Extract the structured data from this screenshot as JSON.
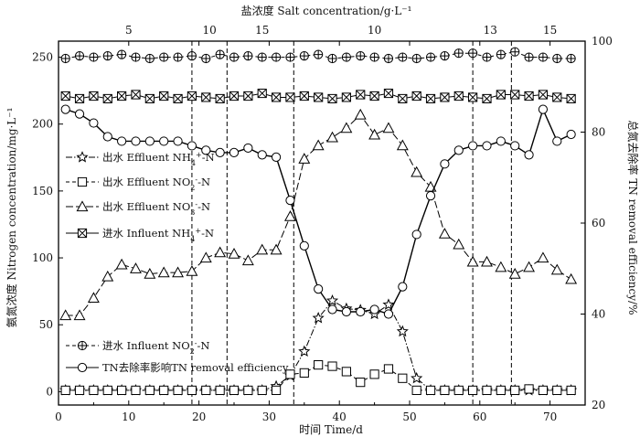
{
  "chart_data": {
    "type": "line",
    "top_title": "盐浓度 Salt concentration/g·L⁻¹",
    "xlabel": "时间 Time/d",
    "ylabel_left": "氨氮浓度 Nitrogen concentration/mg·L⁻¹",
    "ylabel_right": "总氮去除率 TN removal efficiency/%",
    "xlim": [
      0,
      75
    ],
    "ylim_left": [
      -10,
      262
    ],
    "ylim_right": [
      20,
      100
    ],
    "x_ticks": [
      0,
      10,
      20,
      30,
      40,
      50,
      60,
      70
    ],
    "y_ticks_left": [
      0,
      50,
      100,
      150,
      200,
      250
    ],
    "y_ticks_right": [
      20,
      40,
      60,
      80,
      100
    ],
    "phase_boundaries_day": [
      19,
      24,
      33.5,
      59,
      64.5
    ],
    "salt_concentrations": [
      {
        "label": "5",
        "day": 10
      },
      {
        "label": "10",
        "day": 21.5
      },
      {
        "label": "15",
        "day": 29
      },
      {
        "label": "10",
        "day": 45
      },
      {
        "label": "13",
        "day": 61.5
      },
      {
        "label": "15",
        "day": 70
      }
    ],
    "series": [
      {
        "name": "出水 Effluent NH₄⁺-N",
        "axis": "left",
        "marker": "star",
        "x": [
          1,
          3,
          5,
          7,
          9,
          11,
          13,
          15,
          17,
          19,
          21,
          23,
          25,
          27,
          29,
          31,
          33,
          35,
          37,
          39,
          41,
          43,
          45,
          47,
          49,
          51,
          53,
          55,
          57,
          59,
          61,
          63,
          65,
          67,
          69,
          71,
          73
        ],
        "values": [
          1,
          1,
          1,
          1,
          1,
          1,
          1,
          1,
          1,
          1,
          1,
          1,
          1,
          1,
          1,
          4,
          12,
          30,
          55,
          68,
          62,
          61,
          58,
          65,
          45,
          10,
          1,
          1,
          1,
          1,
          1,
          1,
          1,
          1,
          1,
          1,
          1
        ]
      },
      {
        "name": "出水 Effluent NO₂⁻-N",
        "axis": "left",
        "marker": "square",
        "x": [
          1,
          3,
          5,
          7,
          9,
          11,
          13,
          15,
          17,
          19,
          21,
          23,
          25,
          27,
          29,
          31,
          33,
          35,
          37,
          39,
          41,
          43,
          45,
          47,
          49,
          51,
          53,
          55,
          57,
          59,
          61,
          63,
          65,
          67,
          69,
          71,
          73
        ],
        "values": [
          1,
          1,
          1,
          1,
          1,
          1,
          1,
          1,
          1,
          1,
          1,
          1,
          1,
          1,
          1,
          1,
          13,
          14,
          20,
          19,
          15,
          7,
          13,
          17,
          10,
          1,
          1,
          1,
          1,
          1,
          1,
          1,
          1,
          2,
          1,
          1,
          1
        ]
      },
      {
        "name": "出水 Effluent NO₃⁻-N",
        "axis": "left",
        "marker": "triangle",
        "x": [
          1,
          3,
          5,
          7,
          9,
          11,
          13,
          15,
          17,
          19,
          21,
          23,
          25,
          27,
          29,
          31,
          33,
          35,
          37,
          39,
          41,
          43,
          45,
          47,
          49,
          51,
          53,
          55,
          57,
          59,
          61,
          63,
          65,
          67,
          69,
          71,
          73
        ],
        "values": [
          57,
          57,
          70,
          86,
          95,
          92,
          88,
          89,
          89,
          90,
          100,
          104,
          103,
          98,
          106,
          106,
          131,
          174,
          184,
          190,
          197,
          207,
          192,
          197,
          184,
          164,
          153,
          118,
          110,
          97,
          97,
          93,
          88,
          93,
          100,
          91,
          84
        ]
      },
      {
        "name": "进水 Influent NH₄⁺-N",
        "axis": "left",
        "marker": "xbox",
        "x": [
          1,
          3,
          5,
          7,
          9,
          11,
          13,
          15,
          17,
          19,
          21,
          23,
          25,
          27,
          29,
          31,
          33,
          35,
          37,
          39,
          41,
          43,
          45,
          47,
          49,
          51,
          53,
          55,
          57,
          59,
          61,
          63,
          65,
          67,
          69,
          71,
          73
        ],
        "values": [
          221,
          219,
          221,
          219,
          221,
          222,
          219,
          221,
          219,
          221,
          220,
          219,
          221,
          221,
          223,
          220,
          220,
          221,
          220,
          219,
          220,
          222,
          221,
          223,
          219,
          221,
          219,
          220,
          221,
          220,
          219,
          222,
          222,
          221,
          222,
          220,
          219
        ]
      },
      {
        "name": "进水 Influent NO₂⁻-N",
        "axis": "left",
        "marker": "circleplus",
        "x": [
          1,
          3,
          5,
          7,
          9,
          11,
          13,
          15,
          17,
          19,
          21,
          23,
          25,
          27,
          29,
          31,
          33,
          35,
          37,
          39,
          41,
          43,
          45,
          47,
          49,
          51,
          53,
          55,
          57,
          59,
          61,
          63,
          65,
          67,
          69,
          71,
          73
        ],
        "values": [
          249,
          251,
          250,
          251,
          252,
          250,
          249,
          250,
          250,
          251,
          249,
          252,
          250,
          251,
          250,
          250,
          250,
          251,
          252,
          249,
          250,
          251,
          250,
          249,
          250,
          249,
          250,
          251,
          253,
          253,
          250,
          252,
          254,
          250,
          250,
          249,
          249
        ]
      },
      {
        "name": "TN去除率影响TN removal efficiency",
        "axis": "right",
        "marker": "circle",
        "x": [
          1,
          3,
          5,
          7,
          9,
          11,
          13,
          15,
          17,
          19,
          21,
          23,
          25,
          27,
          29,
          31,
          33,
          35,
          37,
          39,
          41,
          43,
          45,
          47,
          49,
          51,
          53,
          55,
          57,
          59,
          61,
          63,
          65,
          67,
          69,
          71,
          73
        ],
        "values": [
          85,
          84,
          82,
          79,
          78,
          78,
          78,
          78,
          78,
          77,
          76,
          75.5,
          75.5,
          76.5,
          75,
          74.5,
          65,
          55,
          45.5,
          41,
          40.5,
          40.5,
          41,
          40,
          46,
          57.5,
          66,
          73,
          76,
          77,
          77,
          78,
          77,
          75,
          85,
          78,
          79.5
        ]
      }
    ],
    "legend": [
      {
        "label": "出水 Effluent NH",
        "sub": "4",
        "sup": "+",
        "tail": "-N",
        "marker": "star",
        "line": "dashdot"
      },
      {
        "label": "出水 Effluent NO",
        "sub": "2",
        "sup": "-",
        "tail": "-N",
        "marker": "square",
        "line": "dash"
      },
      {
        "label": "出水 Effluent NO",
        "sub": "3",
        "sup": "-",
        "tail": "-N",
        "marker": "triangle",
        "line": "longdash"
      },
      {
        "label": "进水 Influent NH",
        "sub": "4",
        "sup": "+",
        "tail": "-N",
        "marker": "xbox",
        "line": "solid"
      },
      {
        "label": "进水 Influent NO",
        "sub": "2",
        "sup": "-",
        "tail": "-N",
        "marker": "circleplus",
        "line": "dash"
      },
      {
        "label": "TN去除率影响TN removal efficiency",
        "sub": "",
        "sup": "",
        "tail": "",
        "marker": "circle",
        "line": "solid"
      }
    ]
  }
}
